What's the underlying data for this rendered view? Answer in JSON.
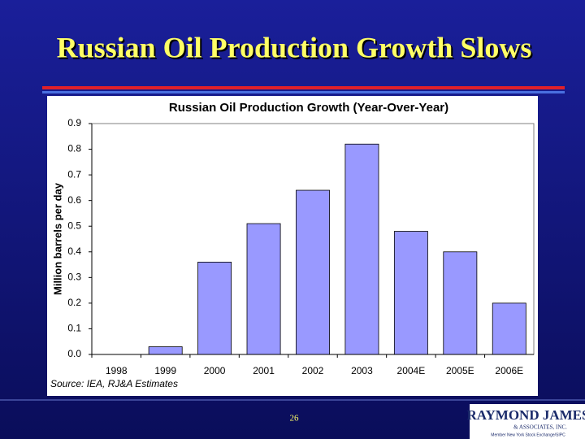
{
  "slide_title": "Russian Oil Production Growth Slows",
  "page_number": "26",
  "logo": {
    "name": "RAYMOND JAMES",
    "subtitle": "& ASSOCIATES, INC.",
    "tagline": "Member New York Stock Exchange/SIPC"
  },
  "chart_data": {
    "type": "bar",
    "title": "Russian Oil Production Growth (Year-Over-Year)",
    "y_label": "Million barrels per day",
    "source": "Source: IEA, RJ&A Estimates",
    "categories": [
      "1998",
      "1999",
      "2000",
      "2001",
      "2002",
      "2003",
      "2004E",
      "2005E",
      "2006E"
    ],
    "values": [
      0,
      0.03,
      0.36,
      0.51,
      0.64,
      0.82,
      0.48,
      0.4,
      0.2
    ],
    "color": "#9999ff",
    "ylim": [
      0,
      0.9
    ],
    "yticks": [
      {
        "value": 0,
        "label": "0.0"
      },
      0.1,
      0.2,
      0.3,
      0.4,
      0.5,
      0.6,
      0.7,
      0.8,
      0.9
    ],
    "grid": false
  }
}
